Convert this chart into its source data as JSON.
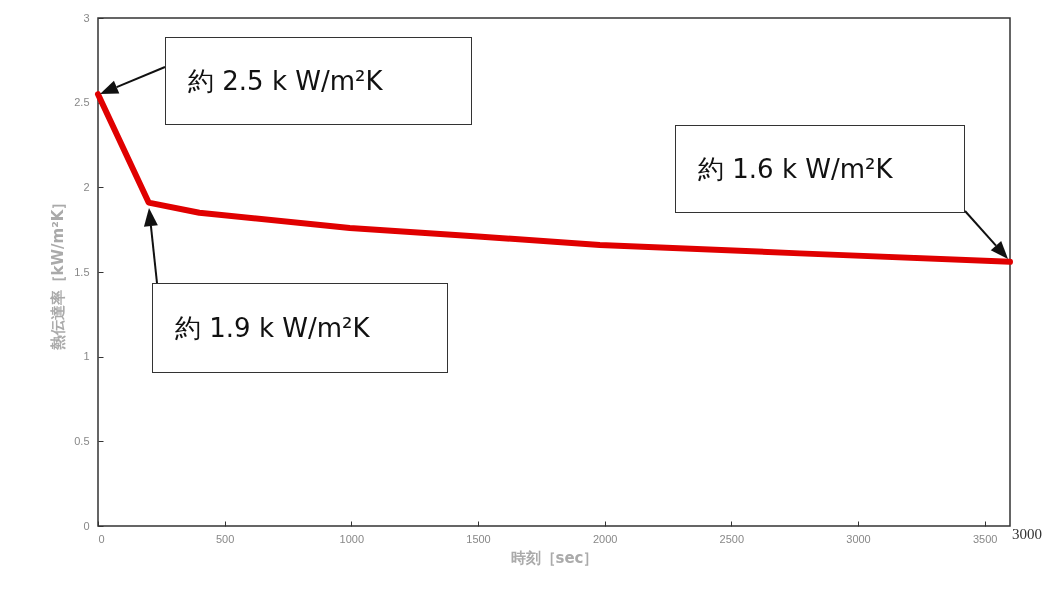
{
  "chart_data": {
    "type": "line",
    "xlabel": "時刻［sec］",
    "ylabel": "熱伝達率［kW/m²K］",
    "x": [
      0,
      200,
      400,
      994,
      1500,
      1981,
      2770,
      3600
    ],
    "series": [
      {
        "color": "#e00000",
        "values": [
          2.55,
          1.91,
          1.85,
          1.76,
          1.71,
          1.66,
          1.61,
          1.56
        ]
      }
    ],
    "xlim": [
      0,
      3600
    ],
    "xticks": [
      0,
      500,
      1000,
      1500,
      2000,
      2500,
      3000,
      3500
    ],
    "ylim": [
      0,
      3
    ],
    "yticks": [
      0,
      0.5,
      1,
      1.5,
      2,
      2.5,
      3
    ],
    "grid": false,
    "marker": "none",
    "line_style": "solid",
    "annotations": [
      "約 2.5 k W/m²K",
      "約 1.9 k W/m²K",
      "約 1.6 k W/m²K",
      "3000"
    ]
  }
}
